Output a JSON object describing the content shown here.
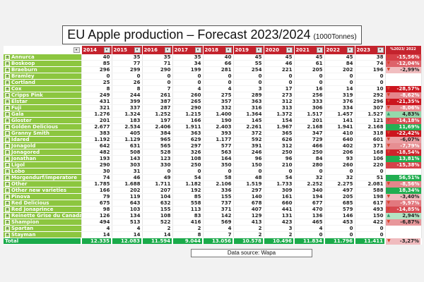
{
  "title": {
    "main": "EU Apple production – Forecast 2023/2024",
    "unit": "(1000Tonnes)"
  },
  "header": {
    "years": [
      "2014",
      "2015",
      "2016",
      "2017",
      "2018",
      "2019",
      "2020",
      "2021",
      "2022",
      "2023"
    ],
    "pct_label": "%2023/ 2022",
    "dropdown_icon": "▾"
  },
  "colors": {
    "header_red": "#c4232d",
    "name_green": "#8cc63f",
    "total_green": "#1aab4a",
    "up_arrow": "#2e9a6e",
    "down_arrow": "#d8432a"
  },
  "rows": [
    {
      "name": "Annurca",
      "values": [
        "40",
        "35",
        "35",
        "35",
        "40",
        "45",
        "45",
        "45",
        "45",
        "38"
      ],
      "pct": "-15,56%"
    },
    {
      "name": "Boskoop",
      "values": [
        "85",
        "77",
        "71",
        "34",
        "66",
        "55",
        "46",
        "61",
        "84",
        "74"
      ],
      "pct": "-12,04%"
    },
    {
      "name": "Braeburn",
      "values": [
        "296",
        "299",
        "290",
        "199",
        "281",
        "254",
        "221",
        "205",
        "202",
        "196"
      ],
      "pct": "-2,99%"
    },
    {
      "name": "Bramley",
      "values": [
        "0",
        "0",
        "0",
        "0",
        "0",
        "0",
        "0",
        "0",
        "0",
        "0"
      ],
      "pct": ""
    },
    {
      "name": "Cortland",
      "values": [
        "25",
        "26",
        "0",
        "0",
        "0",
        "0",
        "0",
        "0",
        "0",
        "0"
      ],
      "pct": ""
    },
    {
      "name": "Cox",
      "values": [
        "8",
        "8",
        "7",
        "4",
        "4",
        "3",
        "17",
        "16",
        "14",
        "10"
      ],
      "pct": "-28,57%"
    },
    {
      "name": "Cripps Pink",
      "values": [
        "249",
        "244",
        "261",
        "260",
        "275",
        "289",
        "273",
        "256",
        "319",
        "292"
      ],
      "pct": "-8,62%"
    },
    {
      "name": "Elstar",
      "values": [
        "431",
        "399",
        "387",
        "265",
        "357",
        "363",
        "312",
        "333",
        "376",
        "296"
      ],
      "pct": "-21,35%"
    },
    {
      "name": "Fuji",
      "values": [
        "321",
        "337",
        "287",
        "290",
        "332",
        "316",
        "313",
        "306",
        "334",
        "307"
      ],
      "pct": "-8,06%"
    },
    {
      "name": "Gala",
      "values": [
        "1.276",
        "1.324",
        "1.252",
        "1.215",
        "1.400",
        "1.364",
        "1.372",
        "1.517",
        "1.457",
        "1.527"
      ],
      "pct": "4,83%"
    },
    {
      "name": "Gloster",
      "values": [
        "201",
        "183",
        "197",
        "166",
        "190",
        "145",
        "154",
        "201",
        "141",
        "121"
      ],
      "pct": "-14,18%"
    },
    {
      "name": "Golden Delicious",
      "values": [
        "2.677",
        "2.534",
        "2.406",
        "1.911",
        "2.403",
        "2.261",
        "1.967",
        "2.168",
        "1.941",
        "2.168"
      ],
      "pct": "11,69%"
    },
    {
      "name": "Granny Smith",
      "values": [
        "383",
        "405",
        "384",
        "363",
        "393",
        "372",
        "365",
        "347",
        "410",
        "318"
      ],
      "pct": "-22,42%"
    },
    {
      "name": "Idared",
      "values": [
        "1.192",
        "1.129",
        "965",
        "629",
        "1.177",
        "592",
        "626",
        "729",
        "640",
        "601"
      ],
      "pct": "-6,07%"
    },
    {
      "name": "Jonagold",
      "values": [
        "642",
        "631",
        "565",
        "297",
        "577",
        "391",
        "312",
        "466",
        "402",
        "371"
      ],
      "pct": "-7,79%"
    },
    {
      "name": "Jonagored",
      "values": [
        "482",
        "508",
        "528",
        "326",
        "563",
        "246",
        "250",
        "250",
        "206",
        "168"
      ],
      "pct": "-18,54%"
    },
    {
      "name": "Jonathan",
      "values": [
        "193",
        "143",
        "123",
        "108",
        "164",
        "96",
        "96",
        "84",
        "93",
        "106"
      ],
      "pct": "13,81%"
    },
    {
      "name": "Ligol",
      "values": [
        "290",
        "303",
        "330",
        "250",
        "350",
        "150",
        "210",
        "280",
        "260",
        "220"
      ],
      "pct": "-15,38%"
    },
    {
      "name": "Lobo",
      "values": [
        "30",
        "31",
        "0",
        "0",
        "0",
        "0",
        "0",
        "0",
        "0",
        "0"
      ],
      "pct": ""
    },
    {
      "name": "Morgendurf/imperatore",
      "values": [
        "74",
        "46",
        "49",
        "54",
        "58",
        "48",
        "54",
        "32",
        "32",
        "51"
      ],
      "pct": "56,51%"
    },
    {
      "name": "Other",
      "values": [
        "1.785",
        "1.688",
        "1.711",
        "1.182",
        "2.106",
        "1.519",
        "1.733",
        "2.252",
        "2.275",
        "2.081"
      ],
      "pct": "-8,56%"
    },
    {
      "name": "Other new varieties",
      "values": [
        "166",
        "202",
        "207",
        "192",
        "336",
        "297",
        "309",
        "340",
        "497",
        "588"
      ],
      "pct": "18,34%"
    },
    {
      "name": "Pinova",
      "values": [
        "79",
        "119",
        "104",
        "85",
        "155",
        "140",
        "161",
        "194",
        "205",
        "198"
      ],
      "pct": "-3,40%"
    },
    {
      "name": "Red Delicious",
      "values": [
        "675",
        "643",
        "632",
        "558",
        "737",
        "678",
        "660",
        "677",
        "685",
        "617"
      ],
      "pct": "-9,97%"
    },
    {
      "name": "Red Jonaprince",
      "values": [
        "98",
        "103",
        "155",
        "113",
        "371",
        "407",
        "441",
        "470",
        "579",
        "493"
      ],
      "pct": "-14,85%"
    },
    {
      "name": "Reinette Grise du Canada",
      "values": [
        "126",
        "134",
        "108",
        "83",
        "142",
        "129",
        "131",
        "136",
        "146",
        "150"
      ],
      "pct": "2,94%"
    },
    {
      "name": "Shampion",
      "values": [
        "494",
        "513",
        "522",
        "416",
        "569",
        "413",
        "423",
        "465",
        "453",
        "422"
      ],
      "pct": "-6,87%"
    },
    {
      "name": "Spartan",
      "values": [
        "4",
        "4",
        "2",
        "2",
        "4",
        "2",
        "3",
        "4",
        "0",
        "0"
      ],
      "pct": ""
    },
    {
      "name": "Stayman",
      "values": [
        "14",
        "14",
        "14",
        "8",
        "7",
        "2",
        "2",
        "0",
        "0",
        "0"
      ],
      "pct": ""
    }
  ],
  "total": {
    "name": "Total",
    "values": [
      "12.335",
      "12.083",
      "11.594",
      "9.044",
      "13.056",
      "10.578",
      "10.496",
      "11.834",
      "11.796",
      "11.411"
    ],
    "pct": "-3,27%"
  },
  "source": "Data source: Wapa"
}
